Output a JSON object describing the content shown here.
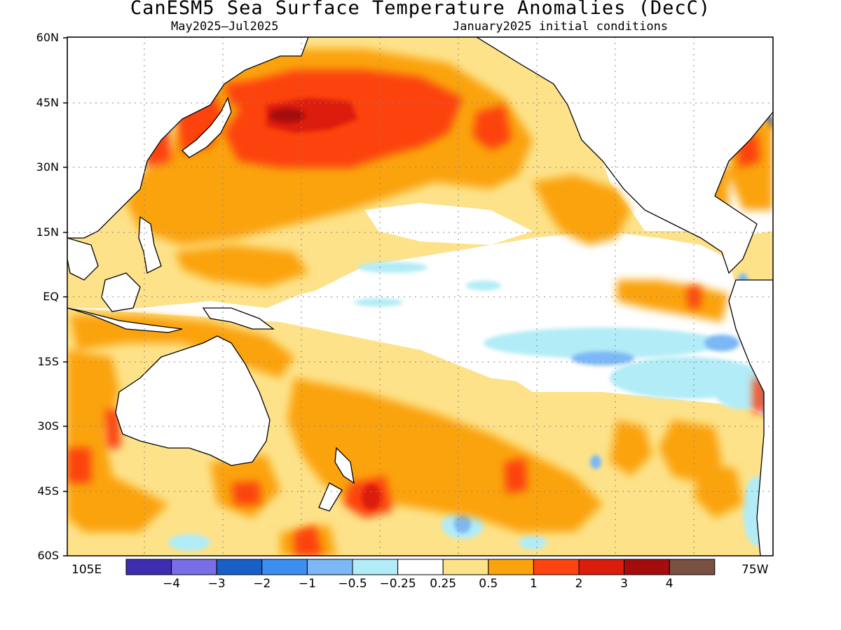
{
  "title": "CanESM5 Sea Surface Temperature Anomalies (DecC)",
  "subtitle_left": "May2025—Jul2025",
  "subtitle_right": "January2025 initial conditions",
  "lat_labels": [
    "60N",
    "45N",
    "30N",
    "15N",
    "EQ",
    "15S",
    "30S",
    "45S",
    "60S"
  ],
  "lon_labels": {
    "west": "105E",
    "east": "75W"
  },
  "map_extent": {
    "lon": [
      "105E",
      "75W"
    ],
    "lat": [
      "60S",
      "60N"
    ]
  },
  "colors": {
    "land": "#ffffff",
    "ocean_neutral": "#ffffff",
    "coast": "#000000",
    "cold_4": "#3d2db0",
    "cold_3": "#7a6ee6",
    "cold_2": "#1a5fc8",
    "cold_1": "#3c8ef0",
    "cold_05": "#7cb8f5",
    "cold_025": "#b2ecf6",
    "neutral": "#ffffff",
    "warm_025": "#fde28a",
    "warm_05": "#fba30c",
    "warm_1": "#fc4310",
    "warm_2": "#dc1c0c",
    "warm_3": "#a50d0d",
    "warm_4": "#7a5040"
  },
  "colorbar": {
    "swatches": [
      "#3d2db0",
      "#7a6ee6",
      "#1a5fc8",
      "#3c8ef0",
      "#7cb8f5",
      "#b2ecf6",
      "#ffffff",
      "#fde28a",
      "#fba30c",
      "#fc4310",
      "#dc1c0c",
      "#a50d0d",
      "#7a5040"
    ],
    "labels": [
      "−4",
      "−3",
      "−2",
      "−1",
      "−0.5",
      "−0.25",
      "0.25",
      "0.5",
      "1",
      "2",
      "3",
      "4"
    ]
  }
}
